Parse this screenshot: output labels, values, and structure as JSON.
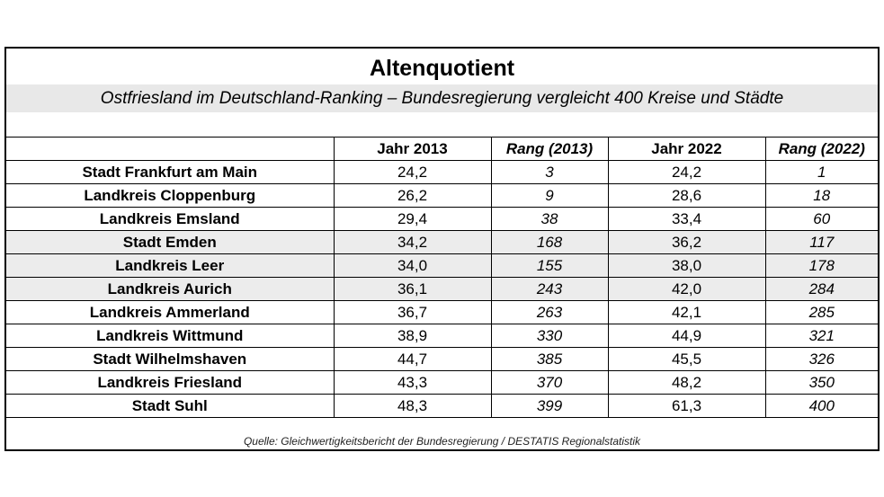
{
  "title": "Altenquotient",
  "subtitle": "Ostfriesland im Deutschland-Ranking – Bundesregierung vergleicht 400 Kreise und Städte",
  "columns": [
    "",
    "Jahr 2013",
    "Rang (2013)",
    "Jahr 2022",
    "Rang (2022)"
  ],
  "rows": [
    {
      "name": "Stadt Frankfurt am Main",
      "y2013": "24,2",
      "r2013": "3",
      "y2022": "24,2",
      "r2022": "1"
    },
    {
      "name": "Landkreis Cloppenburg",
      "y2013": "26,2",
      "r2013": "9",
      "y2022": "28,6",
      "r2022": "18"
    },
    {
      "name": "Landkreis Emsland",
      "y2013": "29,4",
      "r2013": "38",
      "y2022": "33,4",
      "r2022": "60"
    },
    {
      "name": "Stadt Emden",
      "y2013": "34,2",
      "r2013": "168",
      "y2022": "36,2",
      "r2022": "117"
    },
    {
      "name": "Landkreis Leer",
      "y2013": "34,0",
      "r2013": "155",
      "y2022": "38,0",
      "r2022": "178"
    },
    {
      "name": "Landkreis Aurich",
      "y2013": "36,1",
      "r2013": "243",
      "y2022": "42,0",
      "r2022": "284"
    },
    {
      "name": "Landkreis Ammerland",
      "y2013": "36,7",
      "r2013": "263",
      "y2022": "42,1",
      "r2022": "285"
    },
    {
      "name": "Landkreis Wittmund",
      "y2013": "38,9",
      "r2013": "330",
      "y2022": "44,9",
      "r2022": "321"
    },
    {
      "name": "Stadt Wilhelmshaven",
      "y2013": "44,7",
      "r2013": "385",
      "y2022": "45,5",
      "r2022": "326"
    },
    {
      "name": "Landkreis Friesland",
      "y2013": "43,3",
      "r2013": "370",
      "y2022": "48,2",
      "r2022": "350"
    },
    {
      "name": "Stadt Suhl",
      "y2013": "48,3",
      "r2013": "399",
      "y2022": "61,3",
      "r2022": "400"
    }
  ],
  "source": "Quelle: Gleichwertigkeitsbericht der Bundesregierung / DESTATIS Regionalstatistik"
}
